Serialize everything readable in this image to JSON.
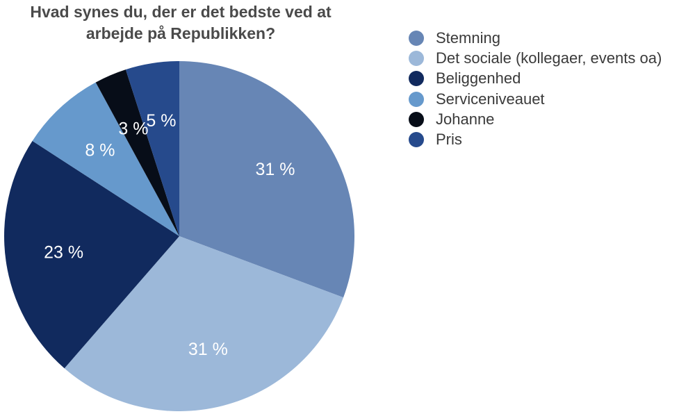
{
  "chart_data": {
    "type": "pie",
    "title": "Hvad synes du, der er det bedste ved at\narbejde på Republikken?",
    "legend_position": "right",
    "slices": [
      {
        "name": "Stemning",
        "value": 31,
        "label": "31 %",
        "color": "#6786b5"
      },
      {
        "name": "Det sociale (kollegaer, events oa)",
        "value": 31,
        "label": "31 %",
        "color": "#9cb8d9"
      },
      {
        "name": "Beliggenhed",
        "value": 23,
        "label": "23 %",
        "color": "#112a5e"
      },
      {
        "name": "Serviceniveauet",
        "value": 8,
        "label": "8 %",
        "color": "#6699cc"
      },
      {
        "name": "Johanne",
        "value": 3,
        "label": "3 %",
        "color": "#070d18"
      },
      {
        "name": "Pris",
        "value": 5,
        "label": "5 %",
        "color": "#264a8c"
      }
    ]
  }
}
